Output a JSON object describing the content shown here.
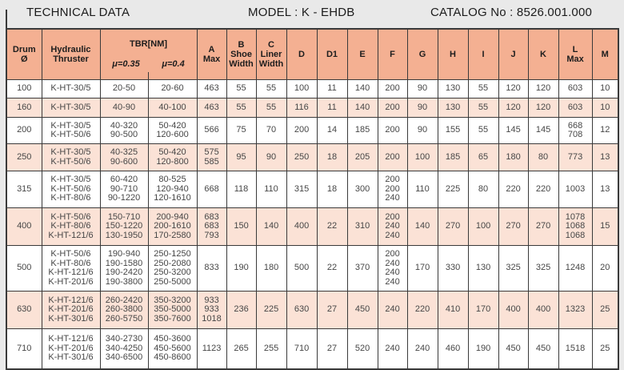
{
  "titlebar": {
    "title": "TECHNICAL DATA",
    "model": "MODEL : K - EHDB",
    "catalog": "CATALOG No : 8526.001.000"
  },
  "colors": {
    "header_salmon": "#f4b092",
    "row_peach": "#fbe2d6",
    "row_white": "#ffffff",
    "border": "#3a3a3a",
    "page_bg": "#e9e9e9"
  },
  "table": {
    "column_order": [
      "drum",
      "thruster",
      "mu035",
      "mu04",
      "a",
      "b",
      "c",
      "d",
      "d1",
      "e",
      "f",
      "g",
      "h",
      "i",
      "j",
      "k",
      "l",
      "m"
    ],
    "headers": {
      "drum": "Drum\nØ",
      "thruster": "Hydraulic\nThruster",
      "tbr": "TBR[NM]",
      "mu035": "μ=0.35",
      "mu04": "μ=0.4",
      "a": "A\nMax",
      "b": "B\nShoe\nWidth",
      "c": "C\nLiner\nWidth",
      "d": "D",
      "d1": "D1",
      "e": "E",
      "f": "F",
      "g": "G",
      "h": "H",
      "i": "I",
      "j": "J",
      "k": "K",
      "l": "L\nMax",
      "m": "M"
    },
    "rows": [
      {
        "shaded": false,
        "drum": "100",
        "thruster": "K-HT-30/5",
        "mu035": "20-50",
        "mu04": "20-60",
        "a": "463",
        "b": "55",
        "c": "55",
        "d": "100",
        "d1": "11",
        "e": "140",
        "f": "200",
        "g": "90",
        "h": "130",
        "i": "55",
        "j": "120",
        "k": "120",
        "l": "603",
        "m": "10"
      },
      {
        "shaded": true,
        "drum": "160",
        "thruster": "K-HT-30/5",
        "mu035": "40-90",
        "mu04": "40-100",
        "a": "463",
        "b": "55",
        "c": "55",
        "d": "116",
        "d1": "11",
        "e": "140",
        "f": "200",
        "g": "90",
        "h": "130",
        "i": "55",
        "j": "120",
        "k": "120",
        "l": "603",
        "m": "10"
      },
      {
        "shaded": false,
        "drum": "200",
        "thruster": "K-HT-30/5\nK-HT-50/6",
        "mu035": "40-320\n90-500",
        "mu04": "50-420\n120-600",
        "a": "566",
        "b": "75",
        "c": "70",
        "d": "200",
        "d1": "14",
        "e": "185",
        "f": "200",
        "g": "90",
        "h": "155",
        "i": "55",
        "j": "145",
        "k": "145",
        "l": "668\n708",
        "m": "12"
      },
      {
        "shaded": true,
        "drum": "250",
        "thruster": "K-HT-30/5\nK-HT-50/6",
        "mu035": "40-325\n90-600",
        "mu04": "50-420\n120-800",
        "a": "575\n585",
        "b": "95",
        "c": "90",
        "d": "250",
        "d1": "18",
        "e": "205",
        "f": "200",
        "g": "100",
        "h": "185",
        "i": "65",
        "j": "180",
        "k": "80",
        "l": "773",
        "m": "13"
      },
      {
        "shaded": false,
        "drum": "315",
        "thruster": "K-HT-30/5\nK-HT-50/6\nK-HT-80/6",
        "mu035": "60-420\n90-710\n90-1220",
        "mu04": "80-525\n120-940\n120-1610",
        "a": "668",
        "b": "118",
        "c": "110",
        "d": "315",
        "d1": "18",
        "e": "300",
        "f": "200\n200\n240",
        "g": "110",
        "h": "225",
        "i": "80",
        "j": "220",
        "k": "220",
        "l": "1003",
        "m": "13"
      },
      {
        "shaded": true,
        "drum": "400",
        "thruster": "K-HT-50/6\nK-HT-80/6\nK-HT-121/6",
        "mu035": "150-710\n150-1220\n130-1950",
        "mu04": "200-940\n200-1610\n170-2580",
        "a": "683\n683\n793",
        "b": "150",
        "c": "140",
        "d": "400",
        "d1": "22",
        "e": "310",
        "f": "200\n240\n240",
        "g": "140",
        "h": "270",
        "i": "100",
        "j": "270",
        "k": "270",
        "l": "1078\n1068\n1068",
        "m": "15"
      },
      {
        "shaded": false,
        "drum": "500",
        "thruster": "K-HT-50/6\nK-HT-80/6\nK-HT-121/6\nK-HT-201/6",
        "mu035": "190-940\n190-1580\n190-2420\n190-3800",
        "mu04": "250-1250\n250-2080\n250-3200\n250-5000",
        "a": "833",
        "b": "190",
        "c": "180",
        "d": "500",
        "d1": "22",
        "e": "370",
        "f": "200\n240\n240\n240",
        "g": "170",
        "h": "330",
        "i": "130",
        "j": "325",
        "k": "325",
        "l": "1248",
        "m": "20"
      },
      {
        "shaded": true,
        "drum": "630",
        "thruster": "K-HT-121/6\nK-HT-201/6\nK-HT-301/6",
        "mu035": "260-2420\n260-3800\n260-5750",
        "mu04": "350-3200\n350-5000\n350-7600",
        "a": "933\n933\n1018",
        "b": "236",
        "c": "225",
        "d": "630",
        "d1": "27",
        "e": "450",
        "f": "240",
        "g": "220",
        "h": "410",
        "i": "170",
        "j": "400",
        "k": "400",
        "l": "1323",
        "m": "25"
      },
      {
        "shaded": false,
        "drum": "710",
        "thruster": "K-HT-121/6\nK-HT-201/6\nK-HT-301/6",
        "mu035": "340-2730\n340-4250\n340-6500",
        "mu04": "450-3600\n450-5600\n450-8600",
        "a": "1123",
        "b": "265",
        "c": "255",
        "d": "710",
        "d1": "27",
        "e": "520",
        "f": "240",
        "g": "240",
        "h": "460",
        "i": "190",
        "j": "450",
        "k": "450",
        "l": "1518",
        "m": "25"
      }
    ]
  }
}
